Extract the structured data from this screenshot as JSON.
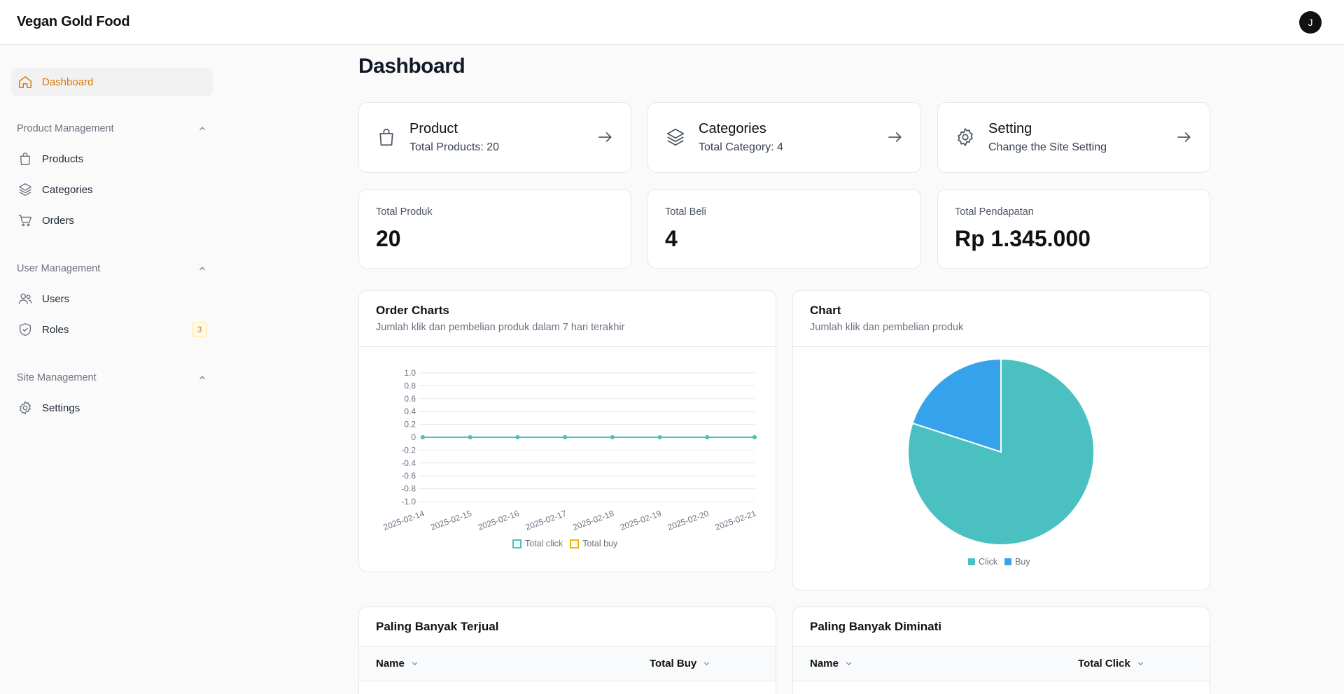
{
  "app": {
    "title": "Vegan Gold Food",
    "user_initial": "J"
  },
  "sidebar": {
    "dashboard": {
      "label": "Dashboard",
      "icon": "home-icon"
    },
    "groups": [
      {
        "label": "Product Management",
        "items": [
          {
            "label": "Products",
            "icon": "shopping-bag-icon"
          },
          {
            "label": "Categories",
            "icon": "layers-icon"
          },
          {
            "label": "Orders",
            "icon": "cart-icon"
          }
        ]
      },
      {
        "label": "User Management",
        "items": [
          {
            "label": "Users",
            "icon": "users-icon"
          },
          {
            "label": "Roles",
            "icon": "shield-icon",
            "badge": "3"
          }
        ]
      },
      {
        "label": "Site Management",
        "items": [
          {
            "label": "Settings",
            "icon": "gear-icon"
          }
        ]
      }
    ]
  },
  "page": {
    "title": "Dashboard"
  },
  "link_cards": [
    {
      "title": "Product",
      "subtitle": "Total Products: 20",
      "icon": "shopping-bag-icon"
    },
    {
      "title": "Categories",
      "subtitle": "Total Category: 4",
      "icon": "layers-icon"
    },
    {
      "title": "Setting",
      "subtitle": "Change the Site Setting",
      "icon": "gear-icon"
    }
  ],
  "stats": [
    {
      "label": "Total Produk",
      "value": "20"
    },
    {
      "label": "Total Beli",
      "value": "4"
    },
    {
      "label": "Total Pendapatan",
      "value": "Rp 1.345.000"
    }
  ],
  "order_chart": {
    "title": "Order Charts",
    "subtitle": "Jumlah klik dan pembelian produk dalam 7 hari terakhir"
  },
  "pie_chart": {
    "title": "Chart",
    "subtitle": "Jumlah klik dan pembelian produk"
  },
  "chart_data": [
    {
      "type": "line",
      "x": [
        "2025-02-14",
        "2025-02-15",
        "2025-02-16",
        "2025-02-17",
        "2025-02-18",
        "2025-02-19",
        "2025-02-20",
        "2025-02-21"
      ],
      "series": [
        {
          "name": "Total click",
          "values": [
            0,
            0,
            0,
            0,
            0,
            0,
            0,
            0
          ],
          "color": "#4bc0c0"
        },
        {
          "name": "Total buy",
          "values": [
            0,
            0,
            0,
            0,
            0,
            0,
            0,
            0
          ],
          "color": "#f5b400"
        }
      ],
      "ylim": [
        -1.0,
        1.0
      ],
      "yticks": [
        "1.0",
        "0.8",
        "0.6",
        "0.4",
        "0.2",
        "0",
        "-0.2",
        "-0.4",
        "-0.6",
        "-0.8",
        "-1.0"
      ],
      "grid": true,
      "legend": "bottom"
    },
    {
      "type": "pie",
      "categories": [
        "Click",
        "Buy"
      ],
      "values": [
        80,
        20
      ],
      "colors": [
        "#4bc0c0",
        "#36a2eb"
      ],
      "legend": "bottom"
    }
  ],
  "tables": [
    {
      "title": "Paling Banyak Terjual",
      "columns": [
        "Name",
        "Total Buy"
      ]
    },
    {
      "title": "Paling Banyak Diminati",
      "columns": [
        "Name",
        "Total Click"
      ]
    }
  ],
  "colors": {
    "accent": "#d97706",
    "border": "#e5e7eb"
  }
}
